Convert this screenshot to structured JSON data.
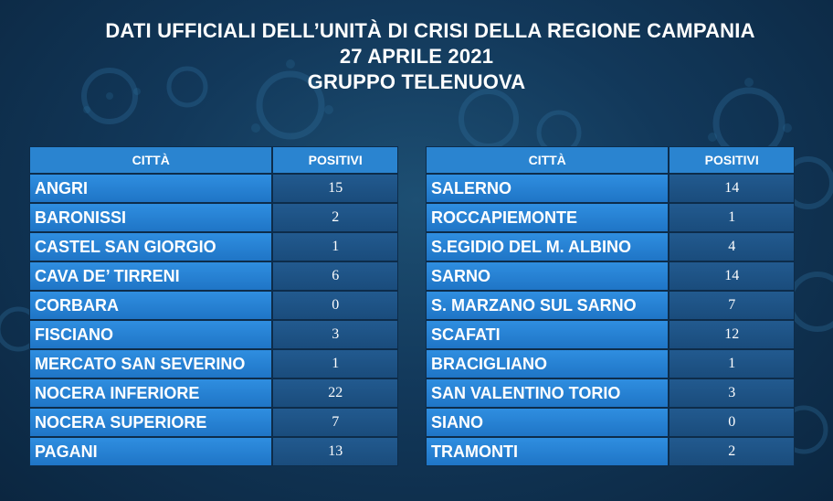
{
  "header": {
    "line1": "DATI UFFICIALI DELL’UNITÀ DI CRISI DELLA REGIONE CAMPANIA",
    "line2": "27 APRILE 2021",
    "line3": "GRUPPO TELENUOVA"
  },
  "left_table": {
    "col_city": "CITTÀ",
    "col_positive": "POSITIVI",
    "rows": [
      {
        "city": "ANGRI",
        "positive": "15"
      },
      {
        "city": "BARONISSI",
        "positive": "2"
      },
      {
        "city": "CASTEL SAN GIORGIO",
        "positive": "1"
      },
      {
        "city": "CAVA DE’ TIRRENI",
        "positive": "6"
      },
      {
        "city": "CORBARA",
        "positive": "0"
      },
      {
        "city": "FISCIANO",
        "positive": "3"
      },
      {
        "city": "MERCATO SAN SEVERINO",
        "positive": "1"
      },
      {
        "city": "NOCERA INFERIORE",
        "positive": "22"
      },
      {
        "city": "NOCERA SUPERIORE",
        "positive": "7"
      },
      {
        "city": "PAGANI",
        "positive": "13"
      }
    ]
  },
  "right_table": {
    "col_city": "CITTÀ",
    "col_positive": "POSITIVI",
    "rows": [
      {
        "city": "SALERNO",
        "positive": "14"
      },
      {
        "city": "ROCCAPIEMONTE",
        "positive": "1"
      },
      {
        "city": "S.EGIDIO DEL M. ALBINO",
        "positive": "4"
      },
      {
        "city": "SARNO",
        "positive": "14"
      },
      {
        "city": "S. MARZANO SUL SARNO",
        "positive": "7"
      },
      {
        "city": "SCAFATI",
        "positive": "12"
      },
      {
        "city": "BRACIGLIANO",
        "positive": "1"
      },
      {
        "city": "SAN VALENTINO TORIO",
        "positive": "3"
      },
      {
        "city": "SIANO",
        "positive": "0"
      },
      {
        "city": "TRAMONTI",
        "positive": "2"
      }
    ]
  },
  "colors": {
    "background": "#12385a",
    "header_cell": "#2a84d0",
    "city_cell": "#2f8ee0",
    "value_cell": "#225a8f",
    "text": "#ffffff"
  }
}
